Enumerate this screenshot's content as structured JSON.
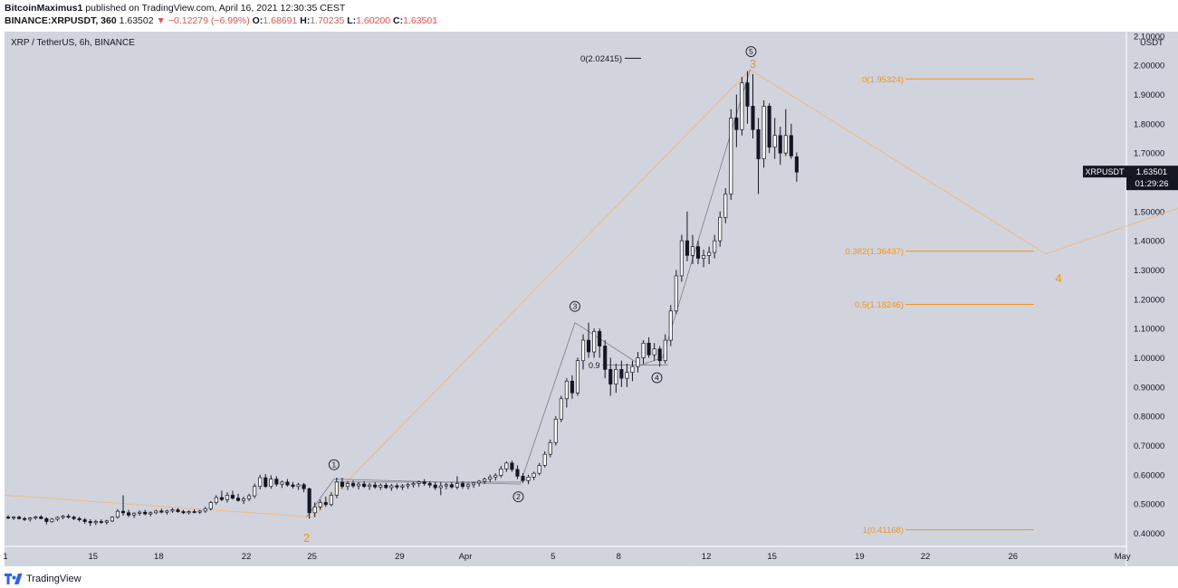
{
  "header": {
    "author": "BitcoinMaximus1",
    "published_text": "published on TradingView.com, April 16, 2021 12:30:35 CEST",
    "symbol": "BINANCE:XRPUSDT, 360",
    "last": "1.63502",
    "change": "−0.12279 (−6.99%)",
    "o_label": "O:",
    "o": "1.68691",
    "h_label": "H:",
    "h": "1.70235",
    "l_label": "L:",
    "l": "1.60200",
    "c_label": "C:",
    "c": "1.63501"
  },
  "legend": "XRP / TetherUS, 6h, BINANCE",
  "footer": {
    "brand": "TradingView"
  },
  "colors": {
    "pane": "#d1d4dc",
    "axis": "#d1d4dc",
    "text": "#131722",
    "orange": "#f7931a",
    "fib": "#f7931a",
    "wave": "#787b86",
    "tag_bg": "#131722"
  },
  "chart_data": {
    "type": "candlestick",
    "title": "XRP / TetherUS, 6h, BINANCE",
    "y_unit": "USDT",
    "ylim": [
      0.355,
      2.115
    ],
    "y_ticks": [
      "0.40000",
      "0.50000",
      "0.60000",
      "0.70000",
      "0.80000",
      "0.90000",
      "1.00000",
      "1.10000",
      "1.20000",
      "1.30000",
      "1.40000",
      "1.50000",
      "1.60000",
      "1.70000",
      "1.80000",
      "1.90000",
      "2.00000",
      "2.10000"
    ],
    "x_ticks": [
      {
        "label": "1",
        "t": "2021-03-11"
      },
      {
        "label": "15",
        "t": "2021-03-15"
      },
      {
        "label": "18",
        "t": "2021-03-18"
      },
      {
        "label": "22",
        "t": "2021-03-22"
      },
      {
        "label": "25",
        "t": "2021-03-25"
      },
      {
        "label": "29",
        "t": "2021-03-29"
      },
      {
        "label": "Apr",
        "t": "2021-04-01"
      },
      {
        "label": "5",
        "t": "2021-04-05"
      },
      {
        "label": "8",
        "t": "2021-04-08"
      },
      {
        "label": "12",
        "t": "2021-04-12"
      },
      {
        "label": "15",
        "t": "2021-04-15"
      },
      {
        "label": "19",
        "t": "2021-04-19"
      },
      {
        "label": "22",
        "t": "2021-04-22"
      },
      {
        "label": "26",
        "t": "2021-04-26"
      },
      {
        "label": "May",
        "t": "2021-05-01"
      }
    ],
    "candles": [
      [
        "2021-03-11T00:00",
        0.455,
        0.462,
        0.448,
        0.452
      ],
      [
        "2021-03-11T06:00",
        0.452,
        0.458,
        0.445,
        0.455
      ],
      [
        "2021-03-11T12:00",
        0.455,
        0.46,
        0.447,
        0.45
      ],
      [
        "2021-03-11T18:00",
        0.45,
        0.456,
        0.442,
        0.448
      ],
      [
        "2021-03-12T00:00",
        0.448,
        0.455,
        0.44,
        0.452
      ],
      [
        "2021-03-12T06:00",
        0.452,
        0.46,
        0.446,
        0.456
      ],
      [
        "2021-03-12T12:00",
        0.456,
        0.462,
        0.448,
        0.45
      ],
      [
        "2021-03-12T18:00",
        0.45,
        0.455,
        0.43,
        0.44
      ],
      [
        "2021-03-13T00:00",
        0.44,
        0.452,
        0.436,
        0.448
      ],
      [
        "2021-03-13T06:00",
        0.448,
        0.458,
        0.442,
        0.454
      ],
      [
        "2021-03-13T12:00",
        0.454,
        0.462,
        0.448,
        0.458
      ],
      [
        "2021-03-13T18:00",
        0.458,
        0.465,
        0.45,
        0.455
      ],
      [
        "2021-03-14T00:00",
        0.455,
        0.46,
        0.445,
        0.45
      ],
      [
        "2021-03-14T06:00",
        0.45,
        0.456,
        0.44,
        0.446
      ],
      [
        "2021-03-14T12:00",
        0.446,
        0.452,
        0.432,
        0.44
      ],
      [
        "2021-03-14T18:00",
        0.44,
        0.448,
        0.425,
        0.436
      ],
      [
        "2021-03-15T00:00",
        0.436,
        0.446,
        0.428,
        0.44
      ],
      [
        "2021-03-15T06:00",
        0.44,
        0.448,
        0.432,
        0.438
      ],
      [
        "2021-03-15T12:00",
        0.438,
        0.446,
        0.43,
        0.442
      ],
      [
        "2021-03-15T18:00",
        0.442,
        0.458,
        0.438,
        0.455
      ],
      [
        "2021-03-16T00:00",
        0.455,
        0.482,
        0.45,
        0.475
      ],
      [
        "2021-03-16T06:00",
        0.475,
        0.53,
        0.46,
        0.47
      ],
      [
        "2021-03-16T12:00",
        0.47,
        0.48,
        0.455,
        0.462
      ],
      [
        "2021-03-16T18:00",
        0.462,
        0.472,
        0.452,
        0.468
      ],
      [
        "2021-03-17T00:00",
        0.468,
        0.478,
        0.46,
        0.472
      ],
      [
        "2021-03-17T06:00",
        0.472,
        0.48,
        0.462,
        0.466
      ],
      [
        "2021-03-17T12:00",
        0.466,
        0.475,
        0.458,
        0.47
      ],
      [
        "2021-03-17T18:00",
        0.47,
        0.48,
        0.465,
        0.476
      ],
      [
        "2021-03-18T00:00",
        0.476,
        0.484,
        0.468,
        0.472
      ],
      [
        "2021-03-18T06:00",
        0.472,
        0.48,
        0.464,
        0.476
      ],
      [
        "2021-03-18T12:00",
        0.476,
        0.486,
        0.47,
        0.48
      ],
      [
        "2021-03-18T18:00",
        0.48,
        0.486,
        0.47,
        0.474
      ],
      [
        "2021-03-19T00:00",
        0.474,
        0.48,
        0.466,
        0.47
      ],
      [
        "2021-03-19T06:00",
        0.47,
        0.478,
        0.464,
        0.474
      ],
      [
        "2021-03-19T12:00",
        0.474,
        0.482,
        0.468,
        0.472
      ],
      [
        "2021-03-19T18:00",
        0.472,
        0.48,
        0.466,
        0.476
      ],
      [
        "2021-03-20T00:00",
        0.476,
        0.49,
        0.47,
        0.484
      ],
      [
        "2021-03-20T06:00",
        0.484,
        0.51,
        0.478,
        0.505
      ],
      [
        "2021-03-20T12:00",
        0.505,
        0.53,
        0.498,
        0.522
      ],
      [
        "2021-03-20T18:00",
        0.522,
        0.545,
        0.51,
        0.515
      ],
      [
        "2021-03-21T00:00",
        0.515,
        0.54,
        0.505,
        0.53
      ],
      [
        "2021-03-21T06:00",
        0.53,
        0.545,
        0.515,
        0.52
      ],
      [
        "2021-03-21T12:00",
        0.52,
        0.535,
        0.508,
        0.512
      ],
      [
        "2021-03-21T18:00",
        0.512,
        0.525,
        0.5,
        0.518
      ],
      [
        "2021-03-22T00:00",
        0.518,
        0.535,
        0.51,
        0.528
      ],
      [
        "2021-03-22T06:00",
        0.528,
        0.57,
        0.52,
        0.56
      ],
      [
        "2021-03-22T12:00",
        0.56,
        0.6,
        0.55,
        0.59
      ],
      [
        "2021-03-22T18:00",
        0.59,
        0.602,
        0.555,
        0.56
      ],
      [
        "2021-03-23T00:00",
        0.56,
        0.598,
        0.552,
        0.585
      ],
      [
        "2021-03-23T06:00",
        0.585,
        0.595,
        0.56,
        0.568
      ],
      [
        "2021-03-23T12:00",
        0.568,
        0.58,
        0.555,
        0.575
      ],
      [
        "2021-03-23T18:00",
        0.575,
        0.585,
        0.56,
        0.565
      ],
      [
        "2021-03-24T00:00",
        0.565,
        0.575,
        0.552,
        0.56
      ],
      [
        "2021-03-24T06:00",
        0.56,
        0.572,
        0.548,
        0.566
      ],
      [
        "2021-03-24T12:00",
        0.566,
        0.572,
        0.54,
        0.552
      ],
      [
        "2021-03-24T18:00",
        0.552,
        0.556,
        0.45,
        0.47
      ],
      [
        "2021-03-25T00:00",
        0.47,
        0.505,
        0.455,
        0.49
      ],
      [
        "2021-03-25T06:00",
        0.49,
        0.515,
        0.48,
        0.505
      ],
      [
        "2021-03-25T12:00",
        0.505,
        0.525,
        0.49,
        0.498
      ],
      [
        "2021-03-25T18:00",
        0.498,
        0.54,
        0.492,
        0.53
      ],
      [
        "2021-03-26T00:00",
        0.53,
        0.59,
        0.52,
        0.575
      ],
      [
        "2021-03-26T06:00",
        0.575,
        0.59,
        0.552,
        0.56
      ],
      [
        "2021-03-26T12:00",
        0.56,
        0.578,
        0.548,
        0.57
      ],
      [
        "2021-03-26T18:00",
        0.57,
        0.58,
        0.555,
        0.562
      ],
      [
        "2021-03-27T00:00",
        0.562,
        0.575,
        0.55,
        0.568
      ],
      [
        "2021-03-27T06:00",
        0.568,
        0.578,
        0.555,
        0.56
      ],
      [
        "2021-03-27T12:00",
        0.56,
        0.572,
        0.548,
        0.565
      ],
      [
        "2021-03-27T18:00",
        0.565,
        0.575,
        0.552,
        0.558
      ],
      [
        "2021-03-28T00:00",
        0.558,
        0.57,
        0.548,
        0.564
      ],
      [
        "2021-03-28T06:00",
        0.564,
        0.572,
        0.552,
        0.556
      ],
      [
        "2021-03-28T12:00",
        0.556,
        0.568,
        0.545,
        0.562
      ],
      [
        "2021-03-28T18:00",
        0.562,
        0.57,
        0.55,
        0.558
      ],
      [
        "2021-03-29T00:00",
        0.558,
        0.568,
        0.548,
        0.562
      ],
      [
        "2021-03-29T06:00",
        0.562,
        0.572,
        0.552,
        0.566
      ],
      [
        "2021-03-29T12:00",
        0.566,
        0.576,
        0.556,
        0.57
      ],
      [
        "2021-03-29T18:00",
        0.57,
        0.58,
        0.558,
        0.575
      ],
      [
        "2021-03-30T00:00",
        0.575,
        0.585,
        0.562,
        0.57
      ],
      [
        "2021-03-30T06:00",
        0.57,
        0.578,
        0.556,
        0.565
      ],
      [
        "2021-03-30T12:00",
        0.565,
        0.575,
        0.548,
        0.556
      ],
      [
        "2021-03-30T18:00",
        0.556,
        0.575,
        0.53,
        0.562
      ],
      [
        "2021-03-31T00:00",
        0.562,
        0.572,
        0.55,
        0.566
      ],
      [
        "2021-03-31T06:00",
        0.566,
        0.575,
        0.552,
        0.558
      ],
      [
        "2021-03-31T12:00",
        0.558,
        0.595,
        0.55,
        0.57
      ],
      [
        "2021-03-31T18:00",
        0.57,
        0.578,
        0.552,
        0.56
      ],
      [
        "2021-04-01T00:00",
        0.56,
        0.572,
        0.55,
        0.566
      ],
      [
        "2021-04-01T06:00",
        0.566,
        0.576,
        0.555,
        0.572
      ],
      [
        "2021-04-01T12:00",
        0.572,
        0.582,
        0.56,
        0.578
      ],
      [
        "2021-04-01T18:00",
        0.578,
        0.59,
        0.568,
        0.585
      ],
      [
        "2021-04-02T00:00",
        0.585,
        0.6,
        0.575,
        0.592
      ],
      [
        "2021-04-02T06:00",
        0.592,
        0.605,
        0.58,
        0.598
      ],
      [
        "2021-04-02T12:00",
        0.598,
        0.63,
        0.59,
        0.62
      ],
      [
        "2021-04-02T18:00",
        0.62,
        0.645,
        0.61,
        0.64
      ],
      [
        "2021-04-03T00:00",
        0.64,
        0.648,
        0.61,
        0.618
      ],
      [
        "2021-04-03T06:00",
        0.618,
        0.632,
        0.585,
        0.595
      ],
      [
        "2021-04-03T12:00",
        0.595,
        0.605,
        0.572,
        0.58
      ],
      [
        "2021-04-03T18:00",
        0.58,
        0.6,
        0.568,
        0.592
      ],
      [
        "2021-04-04T00:00",
        0.592,
        0.61,
        0.582,
        0.605
      ],
      [
        "2021-04-04T06:00",
        0.605,
        0.64,
        0.598,
        0.632
      ],
      [
        "2021-04-04T12:00",
        0.632,
        0.68,
        0.625,
        0.67
      ],
      [
        "2021-04-04T18:00",
        0.67,
        0.72,
        0.66,
        0.71
      ],
      [
        "2021-04-05T00:00",
        0.71,
        0.8,
        0.7,
        0.79
      ],
      [
        "2021-04-05T06:00",
        0.79,
        0.87,
        0.78,
        0.86
      ],
      [
        "2021-04-05T12:00",
        0.86,
        0.93,
        0.83,
        0.92
      ],
      [
        "2021-04-05T18:00",
        0.92,
        0.94,
        0.86,
        0.88
      ],
      [
        "2021-04-06T00:00",
        0.88,
        1.0,
        0.87,
        0.99
      ],
      [
        "2021-04-06T06:00",
        0.99,
        1.08,
        0.96,
        1.06
      ],
      [
        "2021-04-06T12:00",
        1.06,
        1.12,
        1.0,
        1.02
      ],
      [
        "2021-04-06T18:00",
        1.02,
        1.1,
        1.0,
        1.09
      ],
      [
        "2021-04-07T00:00",
        1.09,
        1.1,
        1.0,
        1.04
      ],
      [
        "2021-04-07T06:00",
        1.04,
        1.06,
        0.93,
        0.96
      ],
      [
        "2021-04-07T12:00",
        0.96,
        1.0,
        0.87,
        0.91
      ],
      [
        "2021-04-07T18:00",
        0.91,
        0.98,
        0.88,
        0.96
      ],
      [
        "2021-04-08T00:00",
        0.96,
        0.99,
        0.9,
        0.93
      ],
      [
        "2021-04-08T06:00",
        0.93,
        0.98,
        0.9,
        0.95
      ],
      [
        "2021-04-08T12:00",
        0.95,
        0.99,
        0.92,
        0.97
      ],
      [
        "2021-04-08T18:00",
        0.97,
        1.02,
        0.95,
        1.0
      ],
      [
        "2021-04-09T00:00",
        1.0,
        1.06,
        0.98,
        1.05
      ],
      [
        "2021-04-09T06:00",
        1.05,
        1.07,
        1.0,
        1.01
      ],
      [
        "2021-04-09T12:00",
        1.01,
        1.05,
        0.99,
        1.03
      ],
      [
        "2021-04-09T18:00",
        1.03,
        1.04,
        0.97,
        0.99
      ],
      [
        "2021-04-10T00:00",
        0.99,
        1.08,
        0.98,
        1.06
      ],
      [
        "2021-04-10T06:00",
        1.06,
        1.18,
        1.04,
        1.16
      ],
      [
        "2021-04-10T12:00",
        1.16,
        1.3,
        1.15,
        1.28
      ],
      [
        "2021-04-10T18:00",
        1.28,
        1.42,
        1.26,
        1.4
      ],
      [
        "2021-04-11T00:00",
        1.4,
        1.5,
        1.33,
        1.35
      ],
      [
        "2021-04-11T06:00",
        1.35,
        1.42,
        1.32,
        1.38
      ],
      [
        "2021-04-11T12:00",
        1.38,
        1.4,
        1.32,
        1.34
      ],
      [
        "2021-04-11T18:00",
        1.34,
        1.37,
        1.31,
        1.35
      ],
      [
        "2021-04-12T00:00",
        1.35,
        1.38,
        1.32,
        1.36
      ],
      [
        "2021-04-12T06:00",
        1.36,
        1.42,
        1.34,
        1.4
      ],
      [
        "2021-04-12T12:00",
        1.4,
        1.5,
        1.38,
        1.48
      ],
      [
        "2021-04-12T18:00",
        1.48,
        1.58,
        1.46,
        1.56
      ],
      [
        "2021-04-13T00:00",
        1.56,
        1.85,
        1.54,
        1.82
      ],
      [
        "2021-04-13T06:00",
        1.82,
        1.9,
        1.72,
        1.78
      ],
      [
        "2021-04-13T12:00",
        1.78,
        1.96,
        1.76,
        1.94
      ],
      [
        "2021-04-13T18:00",
        1.94,
        1.98,
        1.8,
        1.86
      ],
      [
        "2021-04-14T00:00",
        1.86,
        1.97,
        1.75,
        1.78
      ],
      [
        "2021-04-14T06:00",
        1.78,
        1.82,
        1.56,
        1.68
      ],
      [
        "2021-04-14T12:00",
        1.68,
        1.88,
        1.65,
        1.86
      ],
      [
        "2021-04-14T18:00",
        1.86,
        1.87,
        1.7,
        1.72
      ],
      [
        "2021-04-15T00:00",
        1.72,
        1.82,
        1.68,
        1.76
      ],
      [
        "2021-04-15T06:00",
        1.76,
        1.79,
        1.66,
        1.7
      ],
      [
        "2021-04-15T12:00",
        1.7,
        1.85,
        1.69,
        1.76
      ],
      [
        "2021-04-15T18:00",
        1.76,
        1.8,
        1.68,
        1.69
      ],
      [
        "2021-04-16T00:00",
        1.687,
        1.702,
        1.602,
        1.635
      ]
    ],
    "fib_levels": [
      {
        "label": "0(1.95324)",
        "value": 1.95324
      },
      {
        "label": "0.382(1.36437)",
        "value": 1.36437
      },
      {
        "label": "0.5(1.18246)",
        "value": 1.18246
      },
      {
        "label": "1(0.41168)",
        "value": 0.41168
      }
    ],
    "ext_level": {
      "label": "0(2.02415)",
      "value": 2.02415
    },
    "inner_level": {
      "label": "0.9",
      "value": 0.975
    },
    "orange_waves": [
      {
        "label": "2",
        "t": "2021-03-25",
        "v": 0.455
      },
      {
        "label": "3",
        "t": "2021-04-14",
        "v": 1.985
      },
      {
        "label": "4",
        "t": "2021-04-27T12:00",
        "v": 1.355
      }
    ],
    "orange_path": [
      [
        "2021-03-11",
        0.53
      ],
      [
        "2021-03-25",
        0.455
      ],
      [
        "2021-04-14",
        1.985
      ],
      [
        "2021-04-27T12:00",
        1.355
      ],
      [
        "2021-05-05T06:00",
        1.555
      ]
    ],
    "sub_waves": [
      {
        "label": "1",
        "t": "2021-03-26",
        "v": 0.585
      },
      {
        "label": "2",
        "t": "2021-04-03T12:00",
        "v": 0.568
      },
      {
        "label": "3",
        "t": "2021-04-06",
        "v": 1.12
      },
      {
        "label": "4",
        "t": "2021-04-09",
        "v": 0.975
      },
      {
        "label": "5",
        "t": "2021-04-14",
        "v": 1.985
      }
    ],
    "last_tag": {
      "symbol": "XRPUSDT",
      "price": "1.63501",
      "countdown": "01:29:26"
    }
  }
}
